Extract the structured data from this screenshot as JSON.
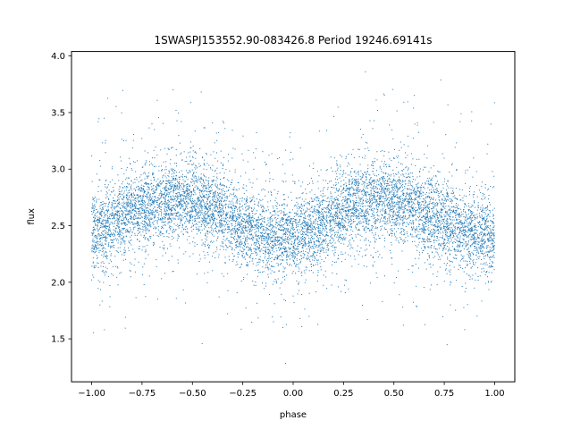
{
  "chart_data": {
    "type": "scatter",
    "title": "1SWASPJ153552.90-083426.8 Period 19246.69141s",
    "xlabel": "phase",
    "ylabel": "flux",
    "xlim": [
      -1.1,
      1.1
    ],
    "ylim": [
      1.12,
      4.04
    ],
    "xticks": [
      -1.0,
      -0.75,
      -0.5,
      -0.25,
      0.0,
      0.25,
      0.5,
      0.75,
      1.0
    ],
    "xtick_labels": [
      "−1.00",
      "−0.75",
      "−0.50",
      "−0.25",
      "0.00",
      "0.25",
      "0.50",
      "0.75",
      "1.00"
    ],
    "yticks": [
      1.5,
      2.0,
      2.5,
      3.0,
      3.5,
      4.0
    ],
    "ytick_labels": [
      "1.5",
      "2.0",
      "2.5",
      "3.0",
      "3.5",
      "4.0"
    ],
    "grid": false,
    "marker_color": "#1f77b4",
    "series": [
      {
        "phase_range": [
          -1.0,
          1.0
        ],
        "curve_phase": [
          -1.0,
          -0.9,
          -0.8,
          -0.7,
          -0.6,
          -0.5,
          -0.4,
          -0.3,
          -0.2,
          -0.1,
          0.0,
          0.1,
          0.2,
          0.3,
          0.4,
          0.5,
          0.6,
          0.7,
          0.8,
          0.9,
          1.0
        ],
        "curve_flux": [
          2.43,
          2.53,
          2.62,
          2.69,
          2.73,
          2.72,
          2.66,
          2.56,
          2.46,
          2.4,
          2.41,
          2.48,
          2.58,
          2.68,
          2.73,
          2.72,
          2.66,
          2.57,
          2.48,
          2.42,
          2.41
        ],
        "scatter_sd": 0.17,
        "flux_range": [
          1.25,
          3.88
        ]
      }
    ]
  }
}
